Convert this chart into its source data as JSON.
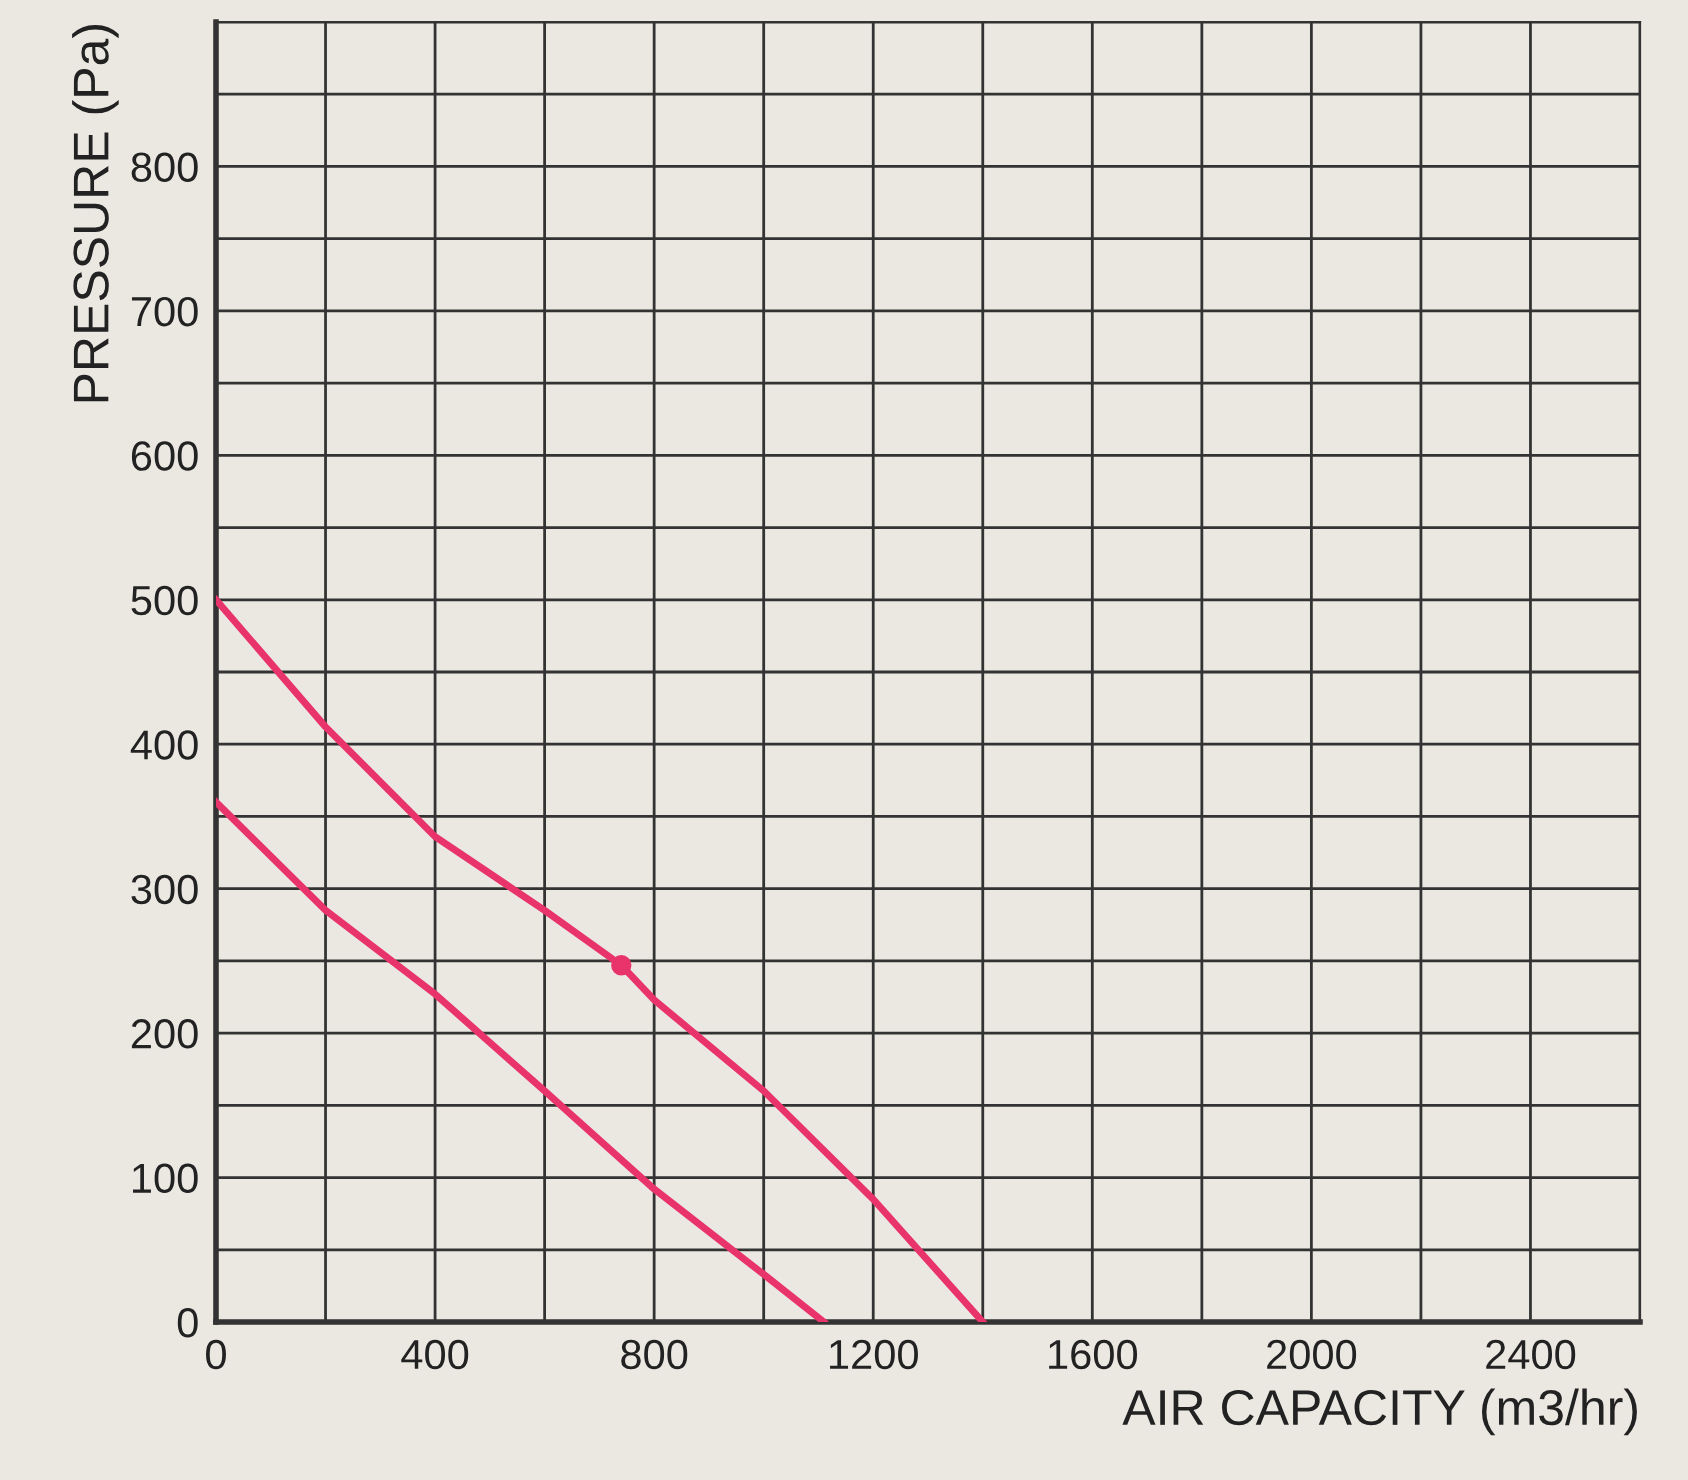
{
  "chart_data": {
    "type": "line",
    "xlabel": "AIR CAPACITY (m3/hr)",
    "ylabel": "PRESSURE (Pa)",
    "series": [
      {
        "color": "#e8336b",
        "x": [
          0,
          200,
          400,
          600,
          740,
          800,
          1000,
          1200,
          1400
        ],
        "values": [
          500,
          412,
          336,
          285,
          247,
          223,
          160,
          85,
          0
        ]
      },
      {
        "color": "#e8336b",
        "x": [
          0,
          200,
          400,
          600,
          800,
          1000,
          1110
        ],
        "values": [
          360,
          285,
          227,
          160,
          92,
          33,
          0
        ]
      },
      {
        "type": "scatter",
        "marker": "circle",
        "color": "#e8336b",
        "x": [
          740
        ],
        "values": [
          247
        ]
      }
    ],
    "xlim": [
      0,
      2600
    ],
    "ylim": [
      0,
      900
    ],
    "xticks": [
      0,
      {
        "value": 200,
        "label": null
      },
      400,
      {
        "value": 600,
        "label": null
      },
      800,
      {
        "value": 1000,
        "label": null
      },
      1200,
      {
        "value": 1400,
        "label": null
      },
      1600,
      {
        "value": 1800,
        "label": null
      },
      2000,
      {
        "value": 2200,
        "label": null
      },
      2400,
      {
        "value": 2600,
        "label": null
      }
    ],
    "yticks": [
      0,
      {
        "value": 50,
        "label": null
      },
      100,
      {
        "value": 150,
        "label": null
      },
      200,
      {
        "value": 250,
        "label": null
      },
      300,
      {
        "value": 350,
        "label": null
      },
      400,
      {
        "value": 450,
        "label": null
      },
      500,
      {
        "value": 550,
        "label": null
      },
      600,
      {
        "value": 650,
        "label": null
      },
      700,
      {
        "value": 750,
        "label": null
      },
      800,
      {
        "value": 850,
        "label": null
      },
      {
        "value": 900,
        "label": null
      }
    ],
    "grid": true,
    "marker": "none",
    "line_style": "solid"
  }
}
